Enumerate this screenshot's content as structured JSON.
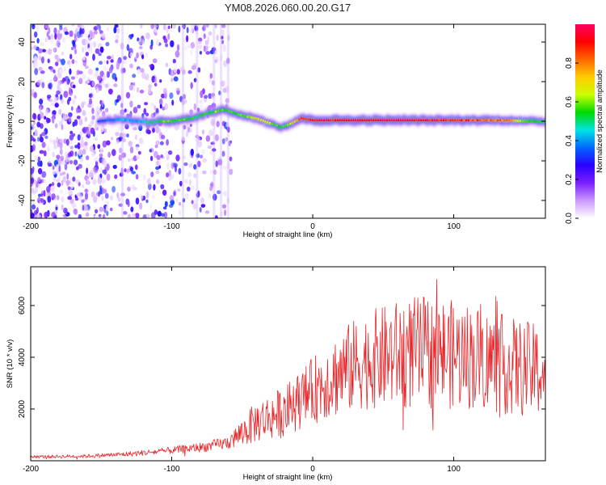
{
  "title": "YM08.2026.060.00.20.G17",
  "chart_data": [
    {
      "type": "heatmap",
      "name": "spectrogram",
      "xlabel": "Height of straight line (km)",
      "ylabel": "Frequency (Hz)",
      "xlim": [
        -200,
        165
      ],
      "ylim": [
        -49,
        49
      ],
      "xticks": [
        -200,
        -100,
        0,
        100
      ],
      "yticks": [
        -40,
        -20,
        0,
        20,
        40
      ],
      "colorbar": {
        "label": "Normalized spectral amplitude",
        "range": [
          0,
          1
        ],
        "ticks": [
          "0.0",
          "0.2",
          "0.4",
          "0.6",
          "0.8"
        ],
        "colors": [
          "#ffffff",
          "#cc99ff",
          "#7a1fff",
          "#2a00ff",
          "#0066ff",
          "#00e5e5",
          "#00d900",
          "#ccff00",
          "#ffcc00",
          "#ff6600",
          "#ff0000",
          "#ff0066"
        ]
      },
      "signal_ridge": {
        "x": [
          -152,
          -145,
          -135,
          -125,
          -115,
          -105,
          -95,
          -85,
          -75,
          -68,
          -62,
          -55,
          -48,
          -40,
          -30,
          -22,
          -15,
          -8,
          0,
          20,
          40,
          60,
          80,
          100,
          120,
          140,
          150,
          165
        ],
        "freq": [
          0,
          0.5,
          1,
          0,
          -0.5,
          0,
          0.5,
          1.5,
          4,
          5,
          6,
          4,
          2.5,
          1.5,
          -1,
          -3,
          -1,
          1.5,
          0.5,
          0.5,
          0.5,
          0.5,
          0.5,
          0.5,
          0.5,
          0.5,
          0,
          0
        ],
        "amplitude": [
          0.35,
          0.38,
          0.45,
          0.42,
          0.5,
          0.6,
          0.6,
          0.55,
          0.55,
          0.6,
          0.6,
          0.55,
          0.6,
          0.75,
          0.65,
          0.55,
          0.7,
          0.9,
          0.95,
          0.97,
          0.98,
          0.98,
          0.95,
          0.9,
          0.85,
          0.8,
          0.6,
          0.55
        ]
      },
      "noise_region_x": [
        -200,
        -58
      ]
    },
    {
      "type": "line",
      "name": "snr",
      "xlabel": "Height of straight line (km)",
      "ylabel": "SNR (10 * v/v)",
      "xlim": [
        -200,
        165
      ],
      "ylim": [
        0,
        7500
      ],
      "xticks": [
        -200,
        -100,
        0,
        100
      ],
      "yticks": [
        2000,
        4000,
        6000
      ],
      "color": "#e8262a",
      "envelope": {
        "x": [
          -200,
          -160,
          -130,
          -100,
          -75,
          -60,
          -45,
          -40,
          -30,
          -20,
          -10,
          0,
          10,
          20,
          30,
          40,
          50,
          60,
          70,
          80,
          90,
          100,
          110,
          120,
          130,
          140,
          150,
          160,
          165
        ],
        "mean": [
          150,
          180,
          260,
          400,
          550,
          700,
          1300,
          1500,
          1700,
          1900,
          2300,
          2700,
          3100,
          3400,
          3700,
          3900,
          4000,
          4100,
          4150,
          4200,
          4150,
          4100,
          4050,
          3950,
          3800,
          3650,
          3550,
          3450,
          3400
        ],
        "spread": [
          60,
          70,
          100,
          140,
          200,
          260,
          700,
          800,
          900,
          1000,
          1100,
          1300,
          1500,
          1700,
          1800,
          1900,
          2000,
          2100,
          2200,
          2200,
          2200,
          2100,
          2100,
          2000,
          2000,
          1900,
          1900,
          1800,
          1800
        ]
      }
    }
  ]
}
